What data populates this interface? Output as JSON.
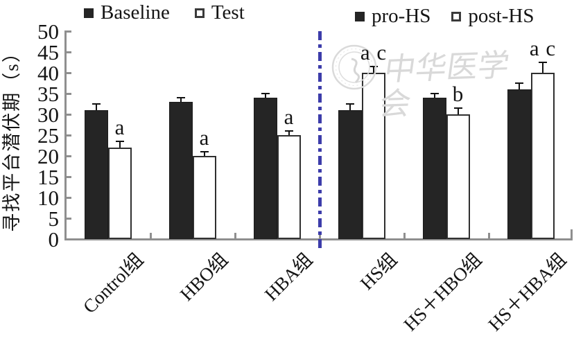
{
  "legend_left": {
    "items": [
      {
        "label": "Baseline",
        "swatch": "filled"
      },
      {
        "label": "Test",
        "swatch": "open"
      }
    ]
  },
  "legend_right": {
    "items": [
      {
        "label": "pro-HS",
        "swatch": "filled"
      },
      {
        "label": "post-HS",
        "swatch": "open"
      }
    ]
  },
  "watermark": {
    "text": "中华医学会",
    "emblem": "cma-seal-logo"
  },
  "chart_data": {
    "type": "bar",
    "title": "",
    "xlabel": "",
    "ylabel": "寻找平台潜伏期（s）",
    "ylim": [
      0,
      50
    ],
    "ytick_step": 5,
    "grid": false,
    "legend_position": "top",
    "categories": [
      "Control组",
      "HBO组",
      "HBA组",
      "HS组",
      "HS＋HBO组",
      "HS＋HBA组"
    ],
    "series": [
      {
        "name": "Baseline (left panel) / pro-HS (right panel)",
        "style": "filled",
        "values": [
          31,
          33,
          34,
          31,
          34,
          36
        ],
        "errors": [
          1.5,
          1,
          1,
          1.5,
          1,
          1.5
        ]
      },
      {
        "name": "Test (left panel) / post-HS (right panel)",
        "style": "open",
        "values": [
          22,
          20,
          25,
          40,
          30,
          40
        ],
        "errors": [
          1.5,
          1,
          1,
          1.5,
          1.5,
          2.5
        ]
      }
    ],
    "sig_annotations": [
      "a",
      "a",
      "a",
      "a c",
      "b",
      "a c"
    ],
    "separator_after_category": "HBA组",
    "colors": {
      "filled_bar": "#252525",
      "open_bar_fill": "#ffffff",
      "open_bar_border": "#2f2f2f",
      "axis": "#8f8f8f",
      "separator": "#3c3caa",
      "error_bar": "#111111",
      "watermark": "#d9d9d9",
      "text": "#141414"
    }
  }
}
